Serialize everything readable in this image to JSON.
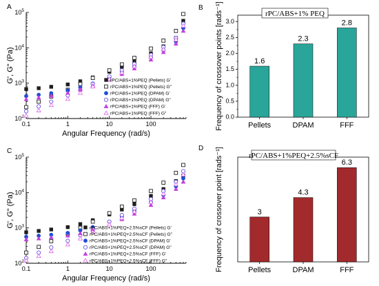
{
  "chart_data": [
    {
      "panel": "A",
      "type": "scatter",
      "xlabel": "Angular Frequency (rad/s)",
      "ylabel": "G', G\" (Pa)",
      "x_scale": "log",
      "y_scale": "log",
      "xlim": [
        0.1,
        700
      ],
      "ylim": [
        100,
        100000
      ],
      "x_ticks": [
        "0.1",
        "1",
        "10",
        "100"
      ],
      "y_ticks": [
        "10^2",
        "10^3",
        "10^4",
        "10^5"
      ],
      "legend": "bottom-right",
      "series": [
        {
          "name": "rPC/ABS+1%PEQ (Pellets) G'",
          "color": "#1e1e1e",
          "marker": "square",
          "filled": true,
          "x": [
            0.1,
            0.2,
            0.4,
            1,
            2,
            4,
            10,
            20,
            40,
            100,
            200,
            400,
            600
          ],
          "y": [
            680,
            720,
            790,
            920,
            1130,
            1450,
            2100,
            2900,
            4100,
            7000,
            11000,
            19000,
            58000
          ]
        },
        {
          "name": "rPC/ABS+1%PEQ (Pellets) G\"",
          "color": "#1e1e1e",
          "marker": "square",
          "filled": false,
          "x": [
            0.1,
            0.2,
            0.4,
            1,
            2,
            4,
            10,
            20,
            40,
            100,
            200,
            400,
            600
          ],
          "y": [
            210,
            300,
            420,
            650,
            950,
            1400,
            2300,
            3400,
            5200,
            9500,
            16000,
            30000,
            90000
          ]
        },
        {
          "name": "rPC/ABS+1%PEQ (DPAM) G'",
          "color": "#1f4ed6",
          "marker": "circle",
          "filled": true,
          "x": [
            0.1,
            0.2,
            0.4,
            1,
            2,
            4,
            10,
            20,
            40,
            100,
            200,
            400,
            600
          ],
          "y": [
            430,
            470,
            520,
            620,
            760,
            980,
            1450,
            2100,
            3000,
            5300,
            8500,
            15000,
            36000
          ]
        },
        {
          "name": "rPC/ABS+1%PEQ (DPAM) G\"",
          "color": "#6b4ee0",
          "marker": "circle",
          "filled": false,
          "x": [
            0.1,
            0.2,
            0.4,
            1,
            2,
            4,
            10,
            20,
            40,
            100,
            200,
            400,
            600
          ],
          "y": [
            160,
            220,
            300,
            450,
            650,
            950,
            1550,
            2300,
            3500,
            6300,
            10500,
            19000,
            48000
          ]
        },
        {
          "name": "rPC/ABS+1%PEQ (FFF) G'",
          "color": "#c040e0",
          "marker": "triangle",
          "filled": true,
          "x": [
            0.1,
            0.2,
            0.4,
            1,
            2,
            4,
            10,
            20,
            40,
            100,
            200,
            400,
            600
          ],
          "y": [
            350,
            390,
            440,
            530,
            650,
            850,
            1250,
            1800,
            2600,
            4600,
            7500,
            13000,
            30000
          ]
        },
        {
          "name": "rPC/ABS+1%PEQ (FFF) G\"",
          "color": "#e070e8",
          "marker": "triangle",
          "filled": false,
          "x": [
            0.1,
            0.2,
            0.4,
            1,
            2,
            4,
            10,
            20,
            40,
            100,
            200,
            400,
            600
          ],
          "y": [
            120,
            170,
            240,
            360,
            530,
            800,
            1300,
            2000,
            3000,
            5500,
            9000,
            17000,
            42000
          ]
        }
      ]
    },
    {
      "panel": "B",
      "type": "bar",
      "title": "rPC/ABS+1% PEQ",
      "ylabel": "Frequency of crossover points [rads⁻¹]",
      "categories": [
        "Pellets",
        "DPAM",
        "FFF"
      ],
      "values": [
        1.6,
        2.3,
        2.8
      ],
      "value_labels": [
        "1.6",
        "2.3",
        "2.8"
      ],
      "ylim": [
        0,
        3.2
      ],
      "y_ticks": [
        "0.0",
        "0.5",
        "1.0",
        "1.5",
        "2.0",
        "2.5",
        "3.0"
      ],
      "bar_color": "#2aa59a"
    },
    {
      "panel": "C",
      "type": "scatter",
      "xlabel": "Angular Frequency (rad/s)",
      "ylabel": "G', G\" (Pa)",
      "x_scale": "log",
      "y_scale": "log",
      "xlim": [
        0.1,
        700
      ],
      "ylim": [
        100,
        100000
      ],
      "x_ticks": [
        "0.1",
        "1",
        "10",
        "100"
      ],
      "y_ticks": [
        "10^2",
        "10^3",
        "10^4",
        "10^5"
      ],
      "legend": "bottom-right",
      "series": [
        {
          "name": "rPC/ABS+1%PEQ+2.5%sCF (Pellets) G'",
          "color": "#1e1e1e",
          "marker": "square",
          "filled": true,
          "x": [
            0.1,
            0.2,
            0.4,
            1,
            2,
            4,
            10,
            20,
            40,
            100,
            200,
            400,
            600
          ],
          "y": [
            750,
            820,
            900,
            1050,
            1280,
            1650,
            2400,
            3300,
            4700,
            8000,
            12500,
            21000,
            30000
          ]
        },
        {
          "name": "rPC/ABS+1%PEQ+2.5%sCF (Pellets) G\"",
          "color": "#1e1e1e",
          "marker": "square",
          "filled": false,
          "x": [
            0.1,
            0.2,
            0.4,
            1,
            2,
            4,
            10,
            20,
            40,
            100,
            200,
            400,
            600
          ],
          "y": [
            200,
            290,
            420,
            680,
            1000,
            1500,
            2600,
            4000,
            6000,
            11000,
            19000,
            36000,
            60000
          ]
        },
        {
          "name": "rPC/ABS+1%PEQ+2.5%sCF (DPAM) G'",
          "color": "#1f4ed6",
          "marker": "circle",
          "filled": true,
          "x": [
            0.1,
            0.2,
            0.4,
            1,
            2,
            4,
            10,
            20,
            40,
            100,
            200,
            400,
            600
          ],
          "y": [
            560,
            600,
            640,
            720,
            850,
            1050,
            1500,
            2100,
            3000,
            5300,
            8500,
            15000,
            25000
          ]
        },
        {
          "name": "rPC/ABS+1%PEQ+2.5%sCF (DPAM) G\"",
          "color": "#6b4ee0",
          "marker": "circle",
          "filled": false,
          "x": [
            0.1,
            0.2,
            0.4,
            1,
            2,
            4,
            10,
            20,
            40,
            100,
            200,
            400,
            600
          ],
          "y": [
            140,
            200,
            280,
            430,
            620,
            920,
            1500,
            2300,
            3500,
            6500,
            11000,
            20000,
            40000
          ]
        },
        {
          "name": "rPC/ABS+1%PEQ+2.5%sCF (FFF) G'",
          "color": "#c040e0",
          "marker": "triangle",
          "filled": true,
          "x": [
            0.1,
            0.2,
            0.4,
            1,
            2,
            4,
            10,
            20,
            40,
            100,
            200,
            400,
            600
          ],
          "y": [
            470,
            500,
            540,
            600,
            700,
            880,
            1250,
            1750,
            2500,
            4400,
            7200,
            12500,
            20000
          ]
        },
        {
          "name": "rPC/ABS+1%PEQ+2.5%sCF (FFF) G\"",
          "color": "#e070e8",
          "marker": "triangle",
          "filled": false,
          "x": [
            0.1,
            0.2,
            0.4,
            1,
            2,
            4,
            10,
            20,
            40,
            100,
            200,
            400,
            600
          ],
          "y": [
            120,
            160,
            220,
            340,
            500,
            760,
            1250,
            1900,
            2900,
            5400,
            9200,
            17000,
            32000
          ]
        }
      ]
    },
    {
      "panel": "D",
      "type": "bar",
      "title": "rPC/ABS+1%PEQ+2.5%sCF",
      "ylabel": "Frequency of crossover point [rads⁻¹]",
      "categories": [
        "Pellets",
        "DPAM",
        "FFF"
      ],
      "values": [
        3.0,
        4.3,
        6.3
      ],
      "value_labels": [
        "3",
        "4.3",
        "6.3"
      ],
      "ylim": [
        0,
        7
      ],
      "y_ticks": [],
      "bar_color": "#a32a2c"
    }
  ]
}
